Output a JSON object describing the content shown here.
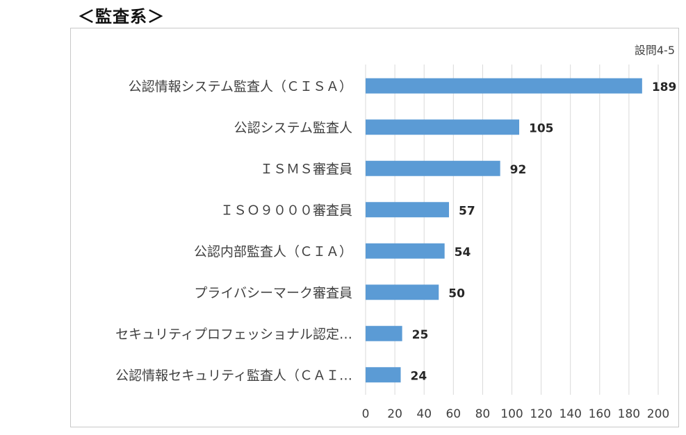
{
  "heading": "＜監査系＞",
  "chart_data": {
    "type": "bar",
    "orientation": "horizontal",
    "note": "設問4-5",
    "categories": [
      "公認情報システム監査人（ＣＩＳＡ）",
      "公認システム監査人",
      "ＩＳＭＳ審査員",
      "ＩＳＯ９０００審査員",
      "公認内部監査人（ＣＩＡ）",
      "プライバシーマーク審査員",
      "セキュリティプロフェッショナル認定…",
      "公認情報セキュリティ監査人（ＣＡＩ…"
    ],
    "values": [
      189,
      105,
      92,
      57,
      54,
      50,
      25,
      24
    ],
    "xlim": [
      0,
      200
    ],
    "xticks": [
      0,
      20,
      40,
      60,
      80,
      100,
      120,
      140,
      160,
      180,
      200
    ],
    "bar_color": "#5b9bd5",
    "grid_color": "#d9d9d9",
    "grid": true,
    "legend": "none"
  }
}
